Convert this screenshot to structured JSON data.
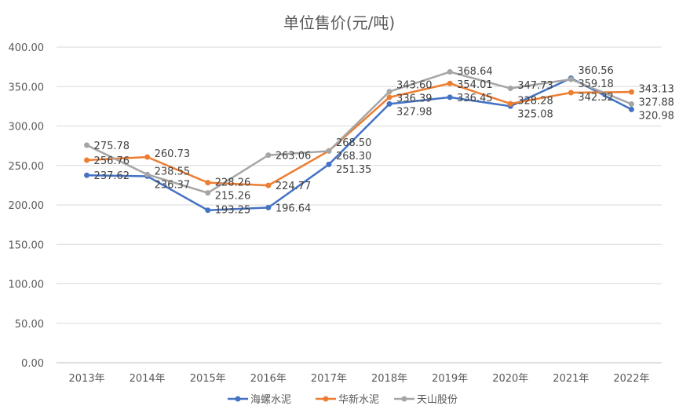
{
  "chart_data": {
    "type": "line",
    "title": "单位售价(元/吨)",
    "categories": [
      "2013年",
      "2014年",
      "2015年",
      "2016年",
      "2017年",
      "2018年",
      "2019年",
      "2020年",
      "2021年",
      "2022年"
    ],
    "ylim": [
      0,
      400
    ],
    "yticks": [
      "0.00",
      "50.00",
      "100.00",
      "150.00",
      "200.00",
      "250.00",
      "300.00",
      "350.00",
      "400.00"
    ],
    "grid": true,
    "legend_position": "bottom",
    "series": [
      {
        "name": "海螺水泥",
        "color": "#4472C4",
        "values": [
          237.62,
          236.37,
          193.25,
          196.64,
          251.35,
          327.98,
          336.45,
          325.08,
          360.56,
          320.98
        ]
      },
      {
        "name": "华新水泥",
        "color": "#ED7D31",
        "values": [
          256.76,
          260.73,
          228.26,
          224.77,
          268.5,
          336.39,
          354.01,
          328.28,
          342.32,
          343.13
        ]
      },
      {
        "name": "天山股份",
        "color": "#A5A5A5",
        "values": [
          275.78,
          238.55,
          215.26,
          263.06,
          268.3,
          343.6,
          368.64,
          347.73,
          359.18,
          327.88
        ]
      }
    ]
  }
}
